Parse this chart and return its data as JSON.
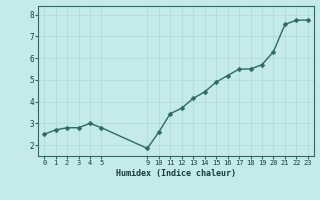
{
  "x": [
    0,
    1,
    2,
    3,
    4,
    5,
    9,
    10,
    11,
    12,
    13,
    14,
    15,
    16,
    17,
    18,
    19,
    20,
    21,
    22,
    23
  ],
  "y": [
    2.5,
    2.7,
    2.8,
    2.8,
    3.0,
    2.8,
    1.85,
    2.6,
    3.45,
    3.7,
    4.15,
    4.45,
    4.9,
    5.2,
    5.5,
    5.5,
    5.7,
    6.3,
    7.55,
    7.75,
    7.75
  ],
  "line_color": "#2d6b5e",
  "marker": "D",
  "marker_size": 2.5,
  "background_color": "#c5eaea",
  "grid_color": "#b0dcdc",
  "xlabel": "Humidex (Indice chaleur)",
  "xlim": [
    -0.5,
    23.5
  ],
  "ylim": [
    1.5,
    8.4
  ],
  "xticks": [
    0,
    1,
    2,
    3,
    4,
    5,
    9,
    10,
    11,
    12,
    13,
    14,
    15,
    16,
    17,
    18,
    19,
    20,
    21,
    22,
    23
  ],
  "yticks": [
    2,
    3,
    4,
    5,
    6,
    7,
    8
  ],
  "tick_color": "#2d6b5e",
  "label_color": "#1a3a3a",
  "spine_color": "#2d6b5e"
}
